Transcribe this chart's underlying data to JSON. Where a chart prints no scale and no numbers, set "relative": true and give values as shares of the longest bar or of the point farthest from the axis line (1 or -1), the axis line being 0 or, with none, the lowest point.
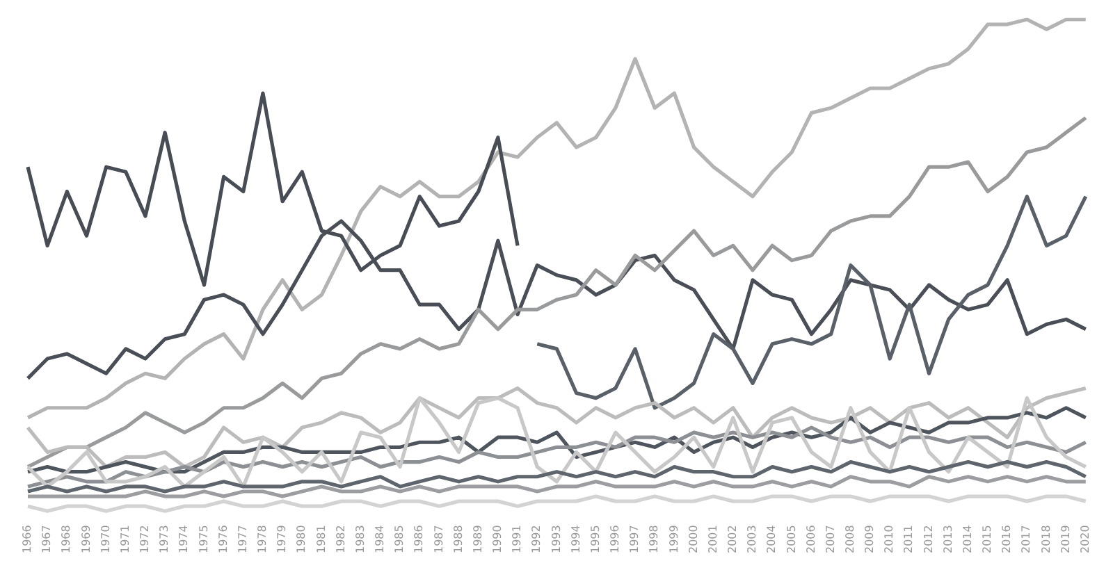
{
  "chart_data": {
    "type": "line",
    "relative": true,
    "legend": false,
    "grid": false,
    "marker": "none",
    "categories": [
      "1966",
      "1967",
      "1968",
      "1969",
      "1970",
      "1971",
      "1972",
      "1973",
      "1974",
      "1975",
      "1976",
      "1977",
      "1978",
      "1979",
      "1980",
      "1981",
      "1982",
      "1983",
      "1984",
      "1985",
      "1986",
      "1987",
      "1988",
      "1989",
      "1990",
      "1991",
      "1992",
      "1993",
      "1994",
      "1995",
      "1996",
      "1997",
      "1998",
      "1999",
      "2000",
      "2001",
      "2002",
      "2003",
      "2004",
      "2005",
      "2006",
      "2007",
      "2008",
      "2009",
      "2010",
      "2011",
      "2012",
      "2013",
      "2014",
      "2015",
      "2016",
      "2017",
      "2018",
      "2019",
      "2020"
    ],
    "series": [
      {
        "color": "#d3d3d3",
        "values": [
          0.01,
          0,
          0.01,
          0.01,
          0,
          0.01,
          0.01,
          0,
          0.01,
          0.01,
          0.02,
          0.01,
          0.01,
          0.02,
          0.01,
          0.01,
          0.02,
          0.02,
          0.01,
          0.02,
          0.02,
          0.01,
          0.02,
          0.02,
          0.02,
          0.01,
          0.02,
          0.02,
          0.02,
          0.03,
          0.02,
          0.02,
          0.03,
          0.02,
          0.02,
          0.03,
          0.02,
          0.02,
          0.03,
          0.03,
          0.02,
          0.03,
          0.03,
          0.02,
          0.03,
          0.03,
          0.03,
          0.02,
          0.03,
          0.03,
          0.03,
          0.02,
          0.03,
          0.03,
          0.02
        ]
      },
      {
        "color": "#9b9da0",
        "values": [
          0.03,
          0.03,
          0.03,
          0.03,
          0.03,
          0.03,
          0.04,
          0.03,
          0.03,
          0.04,
          0.03,
          0.04,
          0.04,
          0.03,
          0.04,
          0.05,
          0.04,
          0.04,
          0.05,
          0.04,
          0.05,
          0.04,
          0.05,
          0.05,
          0.05,
          0.05,
          0.04,
          0.05,
          0.05,
          0.06,
          0.05,
          0.05,
          0.05,
          0.06,
          0.05,
          0.06,
          0.05,
          0.05,
          0.06,
          0.05,
          0.06,
          0.05,
          0.07,
          0.06,
          0.06,
          0.05,
          0.07,
          0.06,
          0.07,
          0.06,
          0.07,
          0.06,
          0.07,
          0.06,
          0.06
        ]
      },
      {
        "color": "#5f656d",
        "values": [
          0.04,
          0.05,
          0.04,
          0.05,
          0.04,
          0.05,
          0.05,
          0.04,
          0.05,
          0.05,
          0.06,
          0.05,
          0.05,
          0.05,
          0.06,
          0.06,
          0.05,
          0.06,
          0.07,
          0.05,
          0.06,
          0.07,
          0.06,
          0.07,
          0.06,
          0.07,
          0.07,
          0.08,
          0.07,
          0.08,
          0.07,
          0.08,
          0.07,
          0.09,
          0.08,
          0.08,
          0.07,
          0.07,
          0.09,
          0.08,
          0.09,
          0.08,
          0.1,
          0.09,
          0.08,
          0.09,
          0.08,
          0.09,
          0.1,
          0.09,
          0.1,
          0.09,
          0.1,
          0.09,
          0.07
        ]
      },
      {
        "color": "#c8c8c8",
        "values": [
          0.09,
          0.05,
          0.08,
          0.12,
          0.06,
          0.06,
          0.07,
          0.09,
          0.05,
          0.08,
          0.11,
          0.05,
          0.15,
          0.12,
          0.08,
          0.12,
          0.06,
          0.16,
          0.15,
          0.09,
          0.23,
          0.18,
          0.12,
          0.22,
          0.23,
          0.21,
          0.09,
          0.06,
          0.12,
          0.08,
          0.16,
          0.12,
          0.08,
          0.11,
          0.15,
          0.09,
          0.19,
          0.08,
          0.18,
          0.19,
          0.12,
          0.09,
          0.21,
          0.12,
          0.08,
          0.21,
          0.12,
          0.08,
          0.15,
          0.12,
          0.09,
          0.23,
          0.15,
          0.11,
          0.09
        ]
      },
      {
        "color": "#8c8f93",
        "values": [
          0.05,
          0.06,
          0.07,
          0.06,
          0.06,
          0.08,
          0.07,
          0.08,
          0.09,
          0.08,
          0.1,
          0.09,
          0.1,
          0.09,
          0.1,
          0.09,
          0.1,
          0.11,
          0.09,
          0.1,
          0.1,
          0.11,
          0.1,
          0.12,
          0.11,
          0.11,
          0.12,
          0.13,
          0.13,
          0.14,
          0.13,
          0.15,
          0.15,
          0.14,
          0.16,
          0.15,
          0.16,
          0.15,
          0.16,
          0.15,
          0.17,
          0.15,
          0.14,
          0.15,
          0.13,
          0.15,
          0.15,
          0.14,
          0.15,
          0.15,
          0.13,
          0.14,
          0.13,
          0.12,
          0.14
        ]
      },
      {
        "color": "#4f555d",
        "values": [
          0.08,
          0.09,
          0.08,
          0.08,
          0.09,
          0.1,
          0.09,
          0.08,
          0.08,
          0.1,
          0.12,
          0.12,
          0.13,
          0.13,
          0.12,
          0.12,
          0.12,
          0.12,
          0.13,
          0.13,
          0.14,
          0.14,
          0.15,
          0.12,
          0.15,
          0.15,
          0.14,
          0.16,
          0.11,
          0.12,
          0.13,
          0.14,
          0.13,
          0.15,
          0.12,
          0.14,
          0.15,
          0.13,
          0.15,
          0.16,
          0.15,
          0.16,
          0.19,
          0.16,
          0.18,
          0.17,
          0.16,
          0.18,
          0.18,
          0.19,
          0.19,
          0.2,
          0.19,
          0.21,
          0.19
        ]
      },
      {
        "color": "#bcbcbc",
        "values": [
          0.17,
          0.12,
          0.13,
          0.13,
          0.09,
          0.11,
          0.11,
          0.12,
          0.09,
          0.11,
          0.17,
          0.14,
          0.15,
          0.13,
          0.17,
          0.18,
          0.2,
          0.19,
          0.16,
          0.18,
          0.23,
          0.21,
          0.19,
          0.23,
          0.23,
          0.25,
          0.22,
          0.21,
          0.18,
          0.21,
          0.19,
          0.21,
          0.22,
          0.19,
          0.21,
          0.18,
          0.21,
          0.15,
          0.19,
          0.21,
          0.19,
          0.18,
          0.19,
          0.21,
          0.18,
          0.21,
          0.22,
          0.19,
          0.21,
          0.18,
          0.15,
          0.21,
          0.23,
          0.24,
          0.25
        ]
      },
      {
        "color": "#999a9c",
        "values": [
          0.09,
          0.11,
          0.13,
          0.13,
          0.15,
          0.17,
          0.2,
          0.18,
          0.16,
          0.18,
          0.21,
          0.21,
          0.23,
          0.26,
          0.23,
          0.27,
          0.28,
          0.32,
          0.34,
          0.33,
          0.35,
          0.33,
          0.34,
          0.41,
          0.37,
          0.41,
          0.41,
          0.43,
          0.44,
          0.49,
          0.46,
          0.52,
          0.49,
          0.53,
          0.57,
          0.52,
          0.54,
          0.49,
          0.54,
          0.51,
          0.52,
          0.57,
          0.59,
          0.6,
          0.6,
          0.64,
          0.7,
          0.7,
          0.71,
          0.65,
          0.68,
          0.73,
          0.74,
          0.77,
          0.8
        ]
      },
      {
        "color": "#5a6068",
        "values": [
          null,
          null,
          null,
          null,
          null,
          null,
          null,
          null,
          null,
          null,
          null,
          null,
          null,
          null,
          null,
          null,
          null,
          null,
          null,
          null,
          null,
          null,
          null,
          null,
          null,
          null,
          0.34,
          0.33,
          0.24,
          0.23,
          0.25,
          0.33,
          0.21,
          0.23,
          0.26,
          0.36,
          0.33,
          0.26,
          0.34,
          0.35,
          0.34,
          0.36,
          0.5,
          0.46,
          0.31,
          0.42,
          0.28,
          0.39,
          0.44,
          0.46,
          0.54,
          0.64,
          0.54,
          0.56,
          0.64
        ]
      },
      {
        "color": "#4a4f57",
        "values": [
          0.27,
          0.31,
          0.32,
          0.3,
          0.28,
          0.33,
          0.31,
          0.35,
          0.36,
          0.43,
          0.44,
          0.42,
          0.36,
          0.42,
          0.49,
          0.56,
          0.59,
          0.55,
          0.49,
          0.49,
          0.42,
          0.42,
          0.37,
          0.41,
          0.55,
          0.4,
          0.5,
          0.48,
          0.47,
          0.44,
          0.46,
          0.51,
          0.52,
          0.47,
          0.45,
          0.39,
          0.33,
          0.47,
          0.44,
          0.43,
          0.36,
          0.41,
          0.47,
          0.46,
          0.45,
          0.41,
          0.46,
          0.43,
          0.41,
          0.42,
          0.47,
          0.36,
          0.38,
          0.39,
          0.37
        ]
      },
      {
        "color": "#484d55",
        "values": [
          0.7,
          0.54,
          0.65,
          0.56,
          0.7,
          0.69,
          0.6,
          0.77,
          0.59,
          0.46,
          0.68,
          0.65,
          0.85,
          0.63,
          0.69,
          0.57,
          0.56,
          0.49,
          0.52,
          0.54,
          0.64,
          0.58,
          0.59,
          0.65,
          0.76,
          0.54,
          null,
          null,
          null,
          null,
          null,
          null,
          null,
          null,
          null,
          null,
          null,
          null,
          null,
          null,
          null,
          null,
          null,
          null,
          null,
          null,
          null,
          null,
          null,
          null,
          null,
          null,
          null,
          null,
          null
        ]
      },
      {
        "color": "#b3b3b3",
        "values": [
          0.19,
          0.21,
          0.21,
          0.21,
          0.23,
          0.26,
          0.28,
          0.27,
          0.31,
          0.34,
          0.36,
          0.31,
          0.41,
          0.47,
          0.41,
          0.44,
          0.52,
          0.61,
          0.66,
          0.64,
          0.67,
          0.64,
          0.64,
          0.67,
          0.73,
          0.72,
          0.76,
          0.79,
          0.74,
          0.76,
          0.82,
          0.92,
          0.82,
          0.85,
          0.74,
          0.7,
          0.67,
          0.64,
          0.69,
          0.73,
          0.81,
          0.82,
          0.84,
          0.86,
          0.86,
          0.88,
          0.9,
          0.91,
          0.94,
          0.99,
          0.99,
          1,
          0.98,
          1,
          1
        ]
      }
    ]
  }
}
